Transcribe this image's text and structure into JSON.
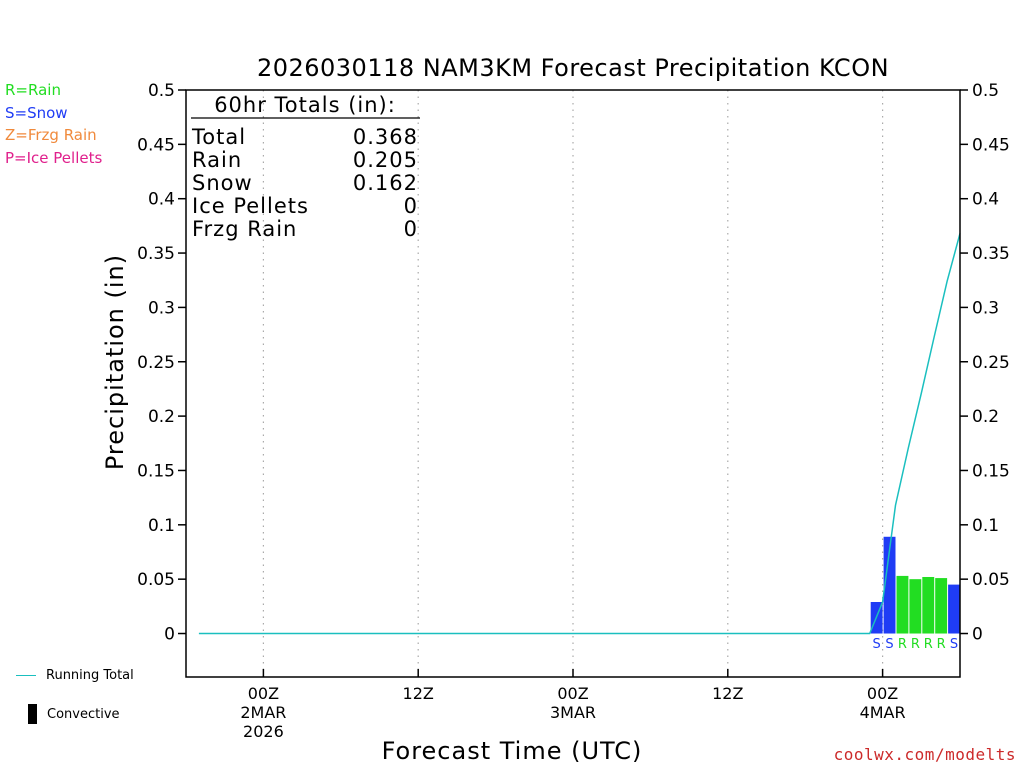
{
  "chart_data": {
    "type": "bar",
    "title": "2026030118 NAM3KM Forecast Precipitation KCON",
    "xlabel": "Forecast Time (UTC)",
    "ylabel": "Precipitation (in)",
    "ylim": [
      -0.04,
      0.5
    ],
    "yticks": [
      0,
      0.05,
      0.1,
      0.15,
      0.2,
      0.25,
      0.3,
      0.35,
      0.4,
      0.45,
      0.5
    ],
    "ytick_labels": [
      "0",
      "0.05",
      "0.1",
      "0.15",
      "0.2",
      "0.25",
      "0.3",
      "0.35",
      "0.4",
      "0.45",
      "0.5"
    ],
    "xlim_hours": [
      -6,
      54
    ],
    "x_axis_start": "2026-03-01 18Z",
    "xticks": [
      {
        "hour": 0,
        "lines": [
          "00Z",
          "2MAR",
          "2026"
        ]
      },
      {
        "hour": 12,
        "lines": [
          "12Z"
        ]
      },
      {
        "hour": 24,
        "lines": [
          "00Z",
          "3MAR"
        ]
      },
      {
        "hour": 36,
        "lines": [
          "12Z"
        ]
      },
      {
        "hour": 48,
        "lines": [
          "00Z",
          "4MAR"
        ]
      }
    ],
    "grid": "vertical dotted at tick hours",
    "totals_box": {
      "heading": "60hr Totals (in):",
      "rows": [
        {
          "label": "Total",
          "value": "0.368"
        },
        {
          "label": "Rain",
          "value": "0.205"
        },
        {
          "label": "Snow",
          "value": "0.162"
        },
        {
          "label": "Ice Pellets",
          "value": "0"
        },
        {
          "label": "Frzg Rain",
          "value": "0"
        }
      ]
    },
    "bars": [
      {
        "hour": 48,
        "value": 0.029,
        "type": "S"
      },
      {
        "hour": 49,
        "value": 0.089,
        "type": "S"
      },
      {
        "hour": 50,
        "value": 0.053,
        "type": "R"
      },
      {
        "hour": 51,
        "value": 0.05,
        "type": "R"
      },
      {
        "hour": 52,
        "value": 0.052,
        "type": "R"
      },
      {
        "hour": 53,
        "value": 0.051,
        "type": "R"
      },
      {
        "hour": 54,
        "value": 0.045,
        "type": "S"
      }
    ],
    "running_total": {
      "name": "Running Total",
      "points": [
        {
          "hour": -5,
          "value": 0
        },
        {
          "hour": 47,
          "value": 0
        },
        {
          "hour": 48,
          "value": 0.029
        },
        {
          "hour": 49,
          "value": 0.118
        },
        {
          "hour": 50,
          "value": 0.171
        },
        {
          "hour": 51,
          "value": 0.221
        },
        {
          "hour": 52,
          "value": 0.273
        },
        {
          "hour": 53,
          "value": 0.324
        },
        {
          "hour": 54,
          "value": 0.368
        }
      ]
    },
    "type_legend": [
      {
        "code": "R",
        "text": "R=Rain",
        "color": "#22dd22"
      },
      {
        "code": "S",
        "text": "S=Snow",
        "color": "#1f3cf5"
      },
      {
        "code": "Z",
        "text": "Z=Frzg Rain",
        "color": "#f08a3c"
      },
      {
        "code": "P",
        "text": "P=Ice Pellets",
        "color": "#e0208c"
      }
    ],
    "series_legend": [
      {
        "name": "Running Total",
        "color": "#1abfbf",
        "marker": "line"
      },
      {
        "name": "Convective",
        "color": "#000000",
        "marker": "bar"
      }
    ],
    "legend_placement": "left"
  },
  "credit": "coolwx.com/modelts"
}
